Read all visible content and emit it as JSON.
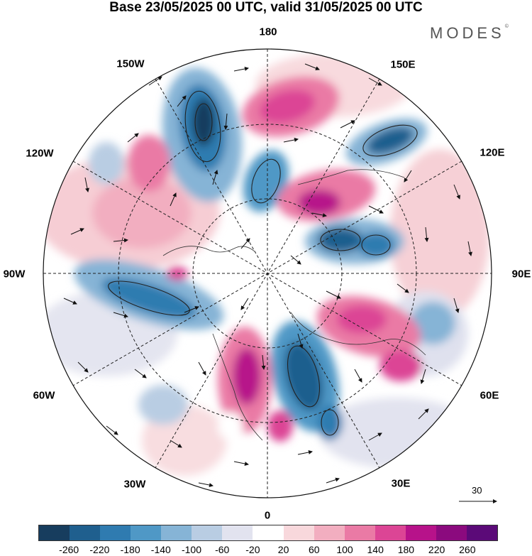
{
  "title": "Base 23/05/2025 00 UTC, valid 31/05/2025 00 UTC",
  "brand": "MODES",
  "brand_mark": "©",
  "longitude_labels": {
    "lon_180": "180",
    "lon_150e": "150E",
    "lon_120e": "120E",
    "lon_90e": "90E",
    "lon_60e": "60E",
    "lon_30e": "30E",
    "lon_0": "0",
    "lon_30w": "30W",
    "lon_60w": "60W",
    "lon_90w": "90W",
    "lon_120w": "120W",
    "lon_150w": "150W"
  },
  "reference_vector": {
    "value": "30"
  },
  "colorbar": {
    "colors": [
      "#173d5e",
      "#1f5f8e",
      "#2f7bb0",
      "#4f98c6",
      "#86b4d6",
      "#b9cde3",
      "#e2e3ef",
      "#ffffff",
      "#f8d8dc",
      "#f2aec0",
      "#ea7aa5",
      "#dc4595",
      "#b7128a",
      "#8b0a7e",
      "#5b0a78"
    ],
    "labels": [
      "-260",
      "-220",
      "-180",
      "-140",
      "-100",
      "-60",
      "-20",
      "20",
      "60",
      "100",
      "140",
      "180",
      "220",
      "260"
    ]
  }
}
